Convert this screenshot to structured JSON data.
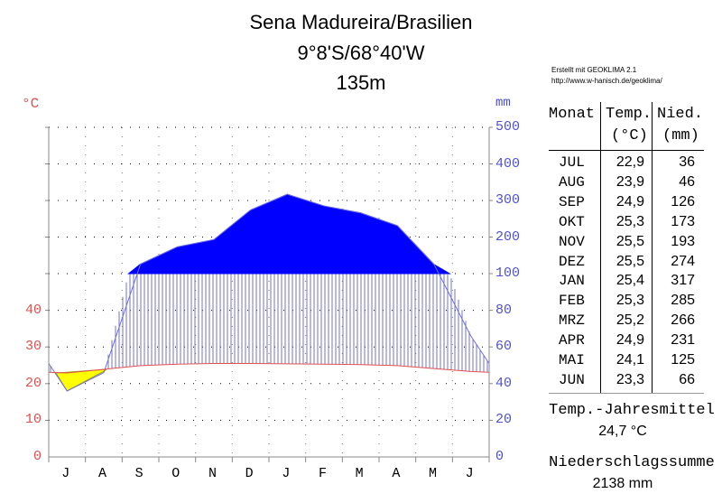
{
  "header": {
    "station": "Sena Madureira/Brasilien",
    "coordinates": "9°8'S/68°40'W",
    "elevation": "135m"
  },
  "credit": {
    "line1": "Erstellt mit GEOKLIMA 2.1",
    "line2": "http://www.w-hanisch.de/geoklima/"
  },
  "table": {
    "headers": {
      "month": "Monat",
      "temp": "Temp.",
      "temp_unit": "(°C)",
      "precip": "Nied.",
      "precip_unit": "(mm)"
    },
    "rows": [
      {
        "month": "JUL",
        "temp": "22,9",
        "precip": "36"
      },
      {
        "month": "AUG",
        "temp": "23,9",
        "precip": "46"
      },
      {
        "month": "SEP",
        "temp": "24,9",
        "precip": "126"
      },
      {
        "month": "OKT",
        "temp": "25,3",
        "precip": "173"
      },
      {
        "month": "NOV",
        "temp": "25,5",
        "precip": "193"
      },
      {
        "month": "DEZ",
        "temp": "25,5",
        "precip": "274"
      },
      {
        "month": "JAN",
        "temp": "25,4",
        "precip": "317"
      },
      {
        "month": "FEB",
        "temp": "25,3",
        "precip": "285"
      },
      {
        "month": "MRZ",
        "temp": "25,2",
        "precip": "266"
      },
      {
        "month": "APR",
        "temp": "24,9",
        "precip": "231"
      },
      {
        "month": "MAI",
        "temp": "24,1",
        "precip": "125"
      },
      {
        "month": "JUN",
        "temp": "23,3",
        "precip": "66"
      }
    ]
  },
  "summary": {
    "annual_temp_label": "Temp.-Jahresmittel",
    "annual_temp_value": "24,7 °C",
    "annual_precip_label": "Niederschlagssumme",
    "annual_precip_value": "2138 mm"
  },
  "axes": {
    "left_unit": "°C",
    "right_unit": "mm",
    "left_ticks": [
      "0",
      "10",
      "20",
      "30",
      "40"
    ],
    "right_ticks": [
      "0",
      "20",
      "40",
      "60",
      "80",
      "100",
      "200",
      "300",
      "400",
      "500"
    ],
    "month_labels": [
      "J",
      "A",
      "S",
      "O",
      "N",
      "D",
      "J",
      "F",
      "M",
      "A",
      "M",
      "J"
    ]
  },
  "colors": {
    "temp": "#e05050",
    "precip": "#5050d0",
    "humid_fill": "#0000ff",
    "arid_fill": "#ffff00"
  },
  "chart_data": {
    "type": "line",
    "title": "Sena Madureira/Brasilien — 9°8'S/68°40'W — 135m",
    "categories": [
      "JUL",
      "AUG",
      "SEP",
      "OKT",
      "NOV",
      "DEZ",
      "JAN",
      "FEB",
      "MRZ",
      "APR",
      "MAI",
      "JUN"
    ],
    "series": [
      {
        "name": "Temperatur (°C)",
        "axis": "left",
        "values": [
          22.9,
          23.9,
          24.9,
          25.3,
          25.5,
          25.5,
          25.4,
          25.3,
          25.2,
          24.9,
          24.1,
          23.3
        ]
      },
      {
        "name": "Niederschlag (mm)",
        "axis": "right",
        "values": [
          36,
          46,
          126,
          173,
          193,
          274,
          317,
          285,
          266,
          231,
          125,
          66
        ]
      }
    ],
    "xlabel": "",
    "ylabel_left": "°C",
    "ylabel_right": "mm",
    "ylim_left": [
      0,
      50
    ],
    "ylim_right": [
      0,
      500
    ],
    "right_axis_scale_break": "linear 0–100 at 2 mm/°C, compressed above 100 mm",
    "annual_mean_temp": 24.7,
    "annual_precip_total": 2138,
    "grid": true,
    "legend": "none"
  }
}
